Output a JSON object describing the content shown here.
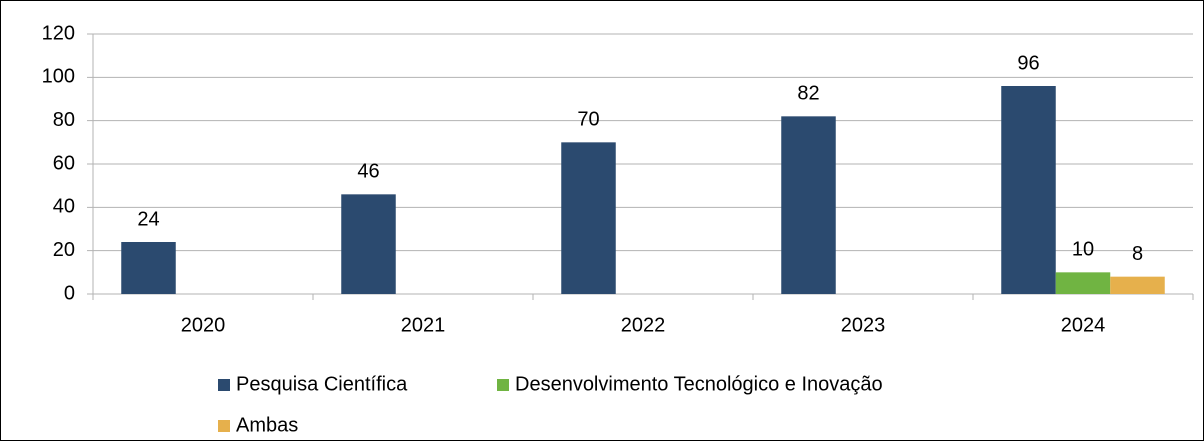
{
  "chart_data": {
    "type": "bar",
    "categories": [
      "2020",
      "2021",
      "2022",
      "2023",
      "2024"
    ],
    "series": [
      {
        "name": "Pesquisa Científica",
        "color": "#2b4a6f",
        "values": [
          24,
          46,
          70,
          82,
          96
        ]
      },
      {
        "name": "Desenvolvimento Tecnológico e Inovação",
        "color": "#70b442",
        "values": [
          null,
          null,
          null,
          null,
          10
        ]
      },
      {
        "name": "Ambas",
        "color": "#e6b04c",
        "values": [
          null,
          null,
          null,
          null,
          8
        ]
      }
    ],
    "ylim": [
      0,
      120
    ],
    "yticks": [
      0,
      20,
      40,
      60,
      80,
      100,
      120
    ],
    "grid": true,
    "legend": "bottom"
  }
}
